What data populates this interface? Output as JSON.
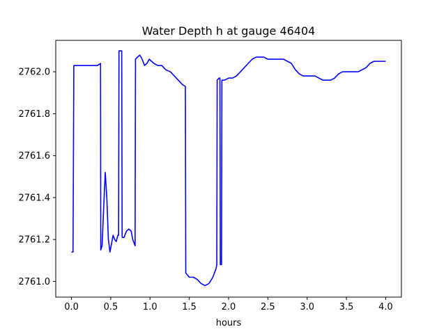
{
  "chart_data": {
    "type": "line",
    "title": "Water Depth h at gauge 46404",
    "xlabel": "hours",
    "ylabel": "",
    "xlim": [
      -0.2,
      4.2
    ],
    "ylim": [
      2760.925,
      2762.15
    ],
    "x_ticks": [
      0.0,
      0.5,
      1.0,
      1.5,
      2.0,
      2.5,
      3.0,
      3.5,
      4.0
    ],
    "x_tick_labels": [
      "0.0",
      "0.5",
      "1.0",
      "1.5",
      "2.0",
      "2.5",
      "3.0",
      "3.5",
      "4.0"
    ],
    "y_ticks": [
      2761.0,
      2761.2,
      2761.4,
      2761.6,
      2761.8,
      2762.0
    ],
    "y_tick_labels": [
      "2761.0",
      "2761.2",
      "2761.4",
      "2761.6",
      "2761.8",
      "2762.0"
    ],
    "grid": false,
    "series": [
      {
        "name": "",
        "color": "#0000ff",
        "points": [
          [
            0.0,
            2761.14
          ],
          [
            0.02,
            2761.14
          ],
          [
            0.03,
            2762.03
          ],
          [
            0.1,
            2762.03
          ],
          [
            0.2,
            2762.03
          ],
          [
            0.3,
            2762.03
          ],
          [
            0.33,
            2762.03
          ],
          [
            0.37,
            2762.04
          ],
          [
            0.373,
            2761.15
          ],
          [
            0.39,
            2761.17
          ],
          [
            0.41,
            2761.35
          ],
          [
            0.43,
            2761.52
          ],
          [
            0.45,
            2761.4
          ],
          [
            0.47,
            2761.2
          ],
          [
            0.49,
            2761.14
          ],
          [
            0.51,
            2761.18
          ],
          [
            0.53,
            2761.22
          ],
          [
            0.55,
            2761.2
          ],
          [
            0.57,
            2761.19
          ],
          [
            0.59,
            2761.22
          ],
          [
            0.6,
            2761.22
          ],
          [
            0.605,
            2762.1
          ],
          [
            0.62,
            2762.1
          ],
          [
            0.64,
            2762.1
          ],
          [
            0.645,
            2761.21
          ],
          [
            0.67,
            2761.21
          ],
          [
            0.7,
            2761.24
          ],
          [
            0.73,
            2761.25
          ],
          [
            0.76,
            2761.24
          ],
          [
            0.78,
            2761.2
          ],
          [
            0.8,
            2761.18
          ],
          [
            0.81,
            2761.17
          ],
          [
            0.815,
            2762.06
          ],
          [
            0.84,
            2762.07
          ],
          [
            0.87,
            2762.08
          ],
          [
            0.9,
            2762.06
          ],
          [
            0.93,
            2762.03
          ],
          [
            0.96,
            2762.04
          ],
          [
            0.99,
            2762.06
          ],
          [
            1.02,
            2762.05
          ],
          [
            1.05,
            2762.04
          ],
          [
            1.1,
            2762.03
          ],
          [
            1.15,
            2762.03
          ],
          [
            1.2,
            2762.01
          ],
          [
            1.26,
            2762.0
          ],
          [
            1.31,
            2761.98
          ],
          [
            1.36,
            2761.96
          ],
          [
            1.41,
            2761.94
          ],
          [
            1.45,
            2761.93
          ],
          [
            1.455,
            2761.04
          ],
          [
            1.5,
            2761.02
          ],
          [
            1.55,
            2761.02
          ],
          [
            1.6,
            2761.01
          ],
          [
            1.65,
            2760.99
          ],
          [
            1.7,
            2760.98
          ],
          [
            1.75,
            2760.99
          ],
          [
            1.8,
            2761.02
          ],
          [
            1.84,
            2761.06
          ],
          [
            1.85,
            2761.08
          ],
          [
            1.855,
            2761.96
          ],
          [
            1.88,
            2761.97
          ],
          [
            1.89,
            2761.97
          ],
          [
            1.895,
            2761.08
          ],
          [
            1.91,
            2761.08
          ],
          [
            1.915,
            2761.96
          ],
          [
            1.95,
            2761.96
          ],
          [
            2.0,
            2761.97
          ],
          [
            2.05,
            2761.97
          ],
          [
            2.1,
            2761.98
          ],
          [
            2.15,
            2762.0
          ],
          [
            2.2,
            2762.02
          ],
          [
            2.25,
            2762.04
          ],
          [
            2.3,
            2762.06
          ],
          [
            2.35,
            2762.07
          ],
          [
            2.4,
            2762.07
          ],
          [
            2.45,
            2762.07
          ],
          [
            2.5,
            2762.06
          ],
          [
            2.55,
            2762.06
          ],
          [
            2.6,
            2762.06
          ],
          [
            2.65,
            2762.06
          ],
          [
            2.7,
            2762.06
          ],
          [
            2.75,
            2762.05
          ],
          [
            2.8,
            2762.04
          ],
          [
            2.85,
            2762.01
          ],
          [
            2.9,
            2761.99
          ],
          [
            2.95,
            2761.98
          ],
          [
            3.0,
            2761.98
          ],
          [
            3.05,
            2761.98
          ],
          [
            3.1,
            2761.98
          ],
          [
            3.15,
            2761.97
          ],
          [
            3.2,
            2761.96
          ],
          [
            3.25,
            2761.96
          ],
          [
            3.3,
            2761.96
          ],
          [
            3.35,
            2761.97
          ],
          [
            3.4,
            2761.99
          ],
          [
            3.45,
            2762.0
          ],
          [
            3.5,
            2762.0
          ],
          [
            3.55,
            2762.0
          ],
          [
            3.6,
            2762.0
          ],
          [
            3.65,
            2762.0
          ],
          [
            3.7,
            2762.01
          ],
          [
            3.75,
            2762.02
          ],
          [
            3.8,
            2762.04
          ],
          [
            3.85,
            2762.05
          ],
          [
            3.9,
            2762.05
          ],
          [
            3.95,
            2762.05
          ],
          [
            4.0,
            2762.05
          ]
        ]
      }
    ]
  }
}
